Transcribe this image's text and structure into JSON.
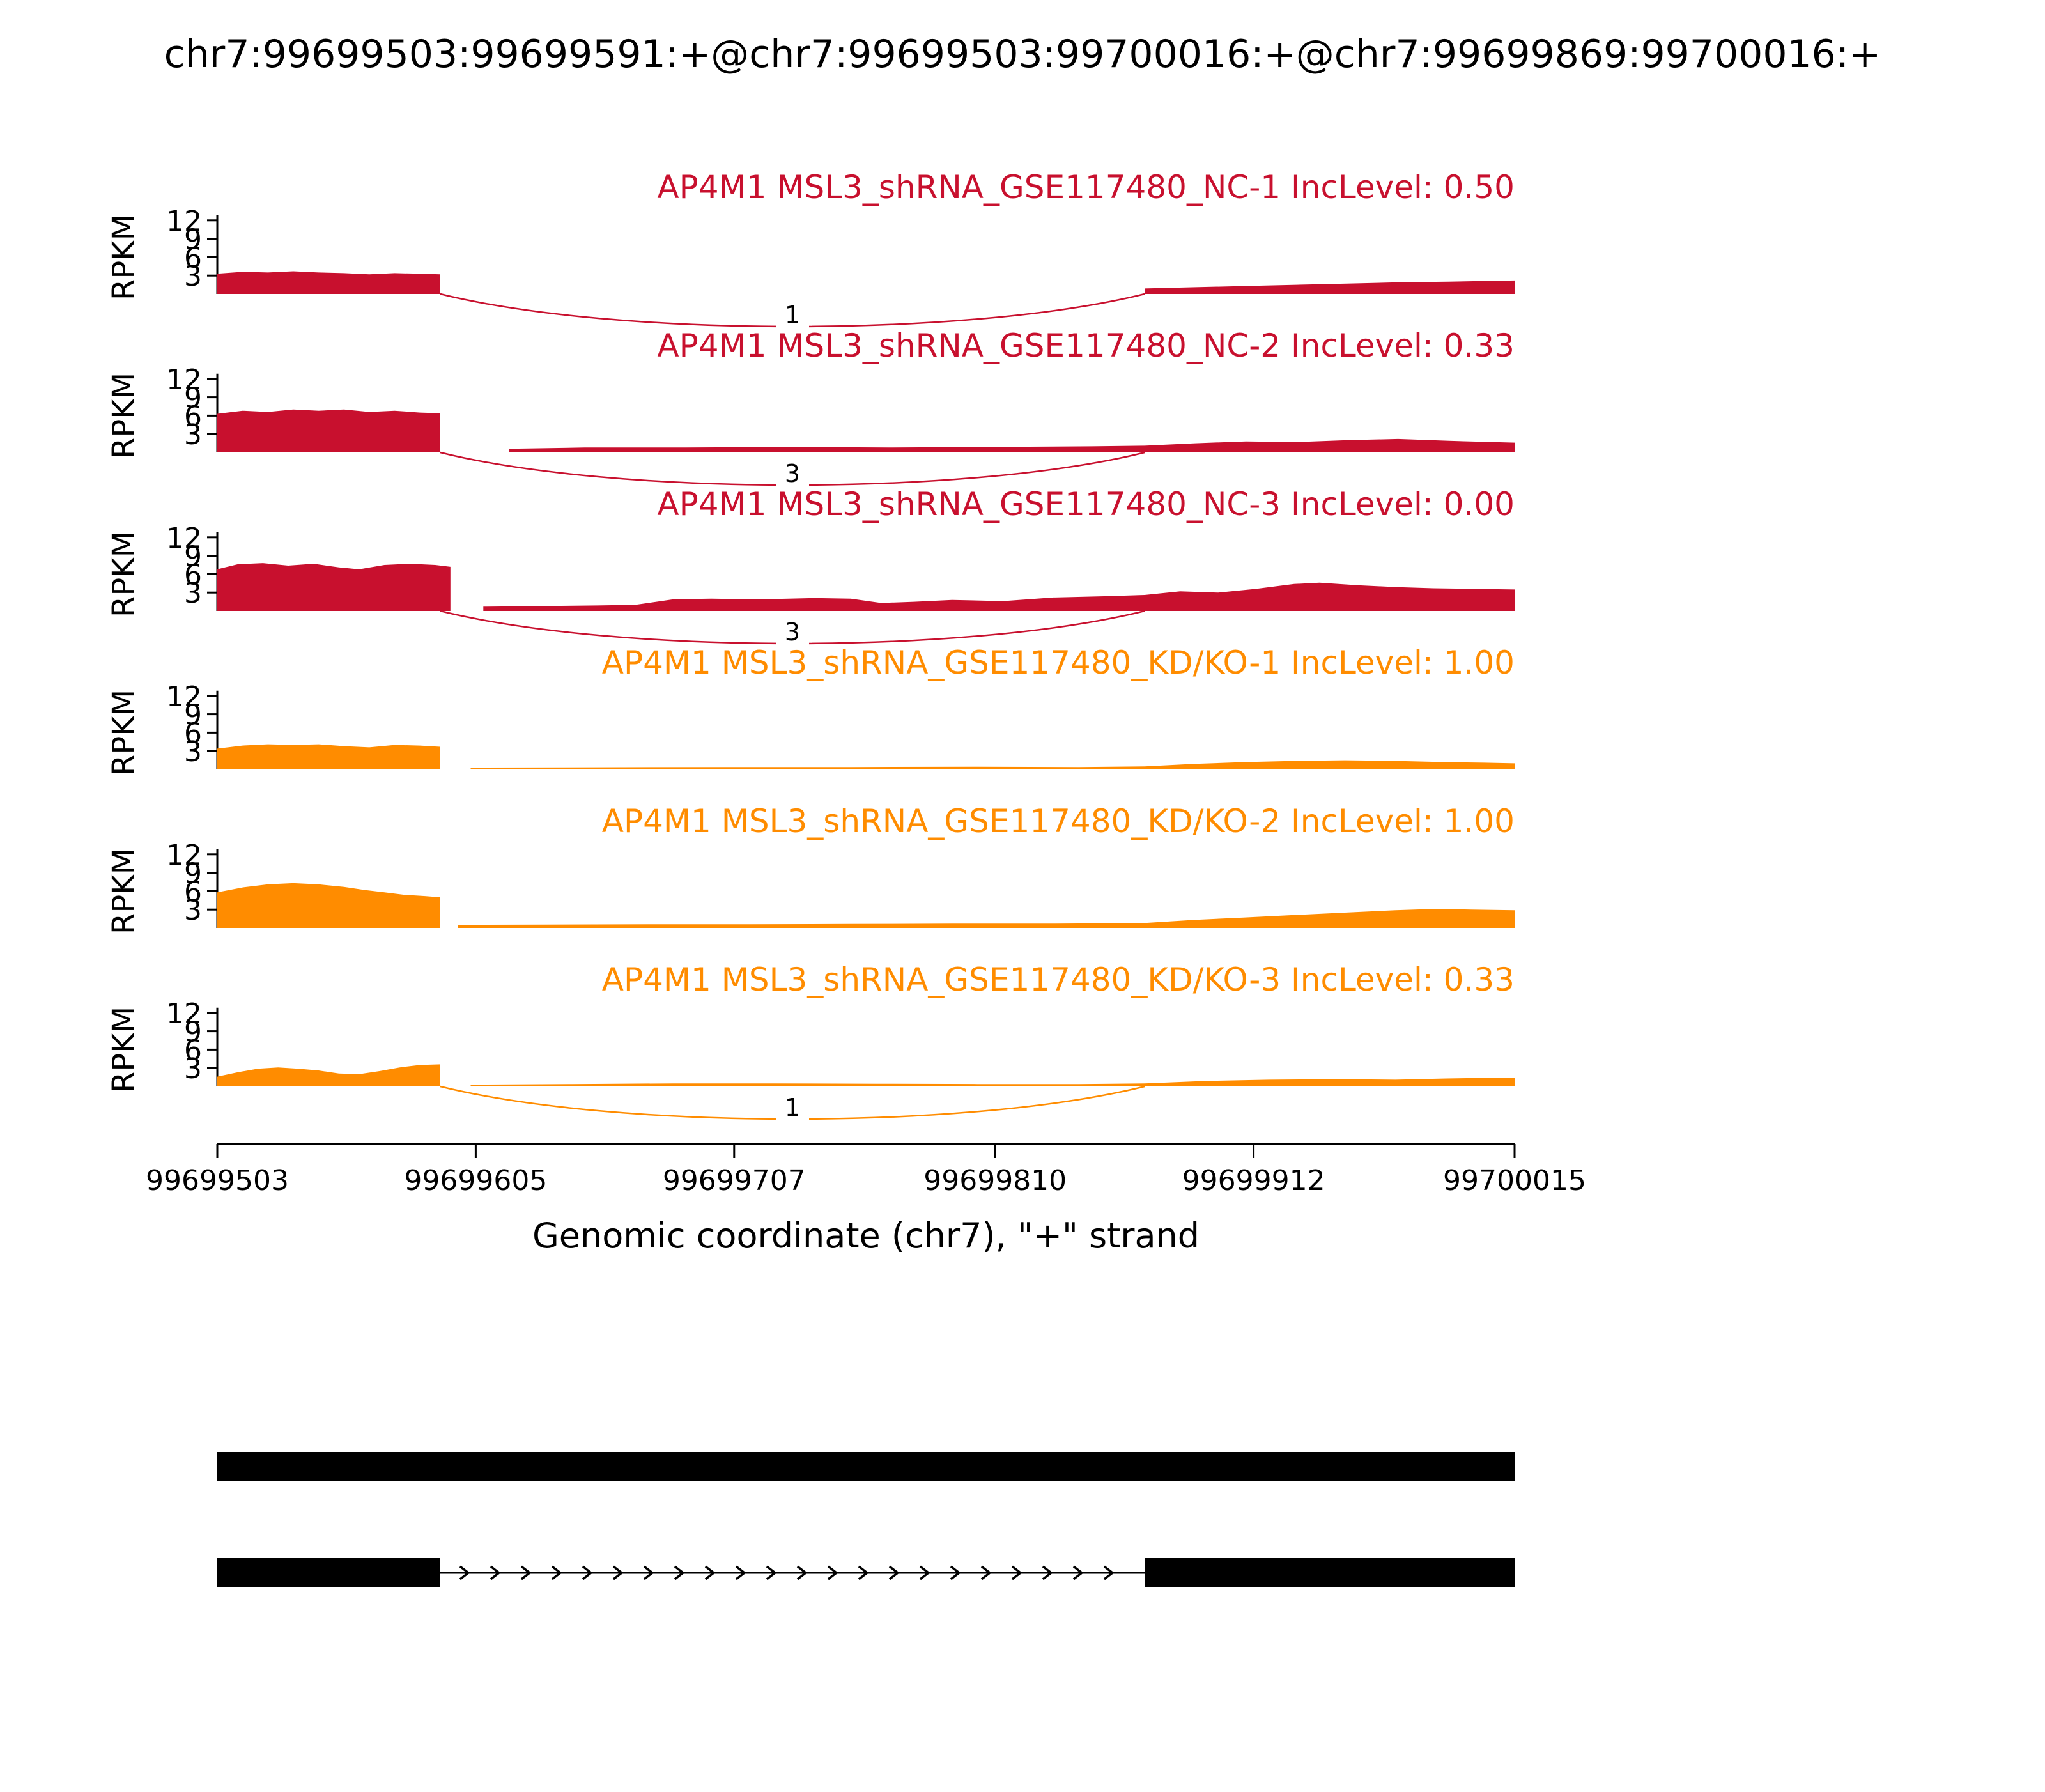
{
  "colors": {
    "nc": "#C8102E",
    "kd_ko": "#FF8C00",
    "gene_model": "#000000",
    "background": "#ffffff"
  },
  "chart_data": {
    "type": "area",
    "subtype": "sashimi-coverage-plot",
    "title": "chr7:99699503:99699591:+@chr7:99699503:99700016:+@chr7:99699869:99700016:+",
    "xlabel": "Genomic coordinate (chr7), \"+\" strand",
    "ylabel": "RPKM",
    "x_domain": [
      99699503,
      99700015
    ],
    "x_ticks": [
      99699503,
      99699605,
      99699707,
      99699810,
      99699912,
      99700015
    ],
    "y_ticks": [
      3,
      6,
      9,
      12
    ],
    "y_max": 12,
    "tracks": [
      {
        "label": "AP4M1 MSL3_shRNA_GSE117480_NC-1 IncLevel: 0.50",
        "color": "#C8102E",
        "segments": [
          [
            [
              99699503,
              3.3
            ],
            [
              99699513,
              3.6
            ],
            [
              99699523,
              3.5
            ],
            [
              99699533,
              3.7
            ],
            [
              99699543,
              3.5
            ],
            [
              99699553,
              3.4
            ],
            [
              99699563,
              3.2
            ],
            [
              99699573,
              3.4
            ],
            [
              99699583,
              3.3
            ],
            [
              99699591,
              3.2
            ]
          ],
          [
            [
              99699869,
              0.9
            ],
            [
              99699889,
              1.1
            ],
            [
              99699909,
              1.3
            ],
            [
              99699929,
              1.5
            ],
            [
              99699949,
              1.7
            ],
            [
              99699969,
              1.9
            ],
            [
              99699989,
              2.0
            ],
            [
              99700002,
              2.1
            ],
            [
              99700015,
              2.2
            ]
          ]
        ],
        "junctions": [
          {
            "from": 99699591,
            "to": 99699869,
            "count": 1
          }
        ]
      },
      {
        "label": "AP4M1 MSL3_shRNA_GSE117480_NC-2 IncLevel: 0.33",
        "color": "#C8102E",
        "segments": [
          [
            [
              99699503,
              6.3
            ],
            [
              99699513,
              6.8
            ],
            [
              99699523,
              6.6
            ],
            [
              99699533,
              7.0
            ],
            [
              99699543,
              6.8
            ],
            [
              99699553,
              7.0
            ],
            [
              99699563,
              6.6
            ],
            [
              99699573,
              6.8
            ],
            [
              99699583,
              6.5
            ],
            [
              99699591,
              6.4
            ]
          ],
          [
            [
              99699618,
              0.6
            ],
            [
              99699648,
              0.8
            ],
            [
              99699688,
              0.8
            ],
            [
              99699728,
              0.9
            ],
            [
              99699768,
              0.8
            ],
            [
              99699808,
              0.9
            ],
            [
              99699848,
              1.0
            ],
            [
              99699869,
              1.1
            ],
            [
              99699889,
              1.5
            ],
            [
              99699909,
              1.8
            ],
            [
              99699929,
              1.7
            ],
            [
              99699949,
              2.0
            ],
            [
              99699969,
              2.2
            ],
            [
              99699989,
              1.9
            ],
            [
              99700015,
              1.6
            ]
          ]
        ],
        "junctions": [
          {
            "from": 99699591,
            "to": 99699869,
            "count": 3
          }
        ]
      },
      {
        "label": "AP4M1 MSL3_shRNA_GSE117480_NC-3 IncLevel: 0.00",
        "color": "#C8102E",
        "segments": [
          [
            [
              99699503,
              6.8
            ],
            [
              99699511,
              7.6
            ],
            [
              99699521,
              7.8
            ],
            [
              99699531,
              7.4
            ],
            [
              99699541,
              7.7
            ],
            [
              99699551,
              7.1
            ],
            [
              99699559,
              6.8
            ],
            [
              99699569,
              7.5
            ],
            [
              99699579,
              7.7
            ],
            [
              99699589,
              7.5
            ],
            [
              99699595,
              7.2
            ]
          ],
          [
            [
              99699608,
              0.7
            ],
            [
              99699633,
              0.8
            ],
            [
              99699653,
              0.9
            ],
            [
              99699668,
              1.0
            ],
            [
              99699683,
              1.9
            ],
            [
              99699698,
              2.0
            ],
            [
              99699718,
              1.9
            ],
            [
              99699738,
              2.1
            ],
            [
              99699753,
              2.0
            ],
            [
              99699765,
              1.3
            ],
            [
              99699778,
              1.5
            ],
            [
              99699793,
              1.8
            ],
            [
              99699813,
              1.6
            ],
            [
              99699833,
              2.2
            ],
            [
              99699853,
              2.4
            ],
            [
              99699869,
              2.6
            ],
            [
              99699883,
              3.2
            ],
            [
              99699898,
              3.0
            ],
            [
              99699913,
              3.6
            ],
            [
              99699928,
              4.4
            ],
            [
              99699938,
              4.6
            ],
            [
              99699953,
              4.2
            ],
            [
              99699968,
              3.9
            ],
            [
              99699983,
              3.7
            ],
            [
              99699998,
              3.6
            ],
            [
              99700015,
              3.5
            ]
          ]
        ],
        "junctions": [
          {
            "from": 99699591,
            "to": 99699869,
            "count": 3
          }
        ]
      },
      {
        "label": "AP4M1 MSL3_shRNA_GSE117480_KD/KO-1 IncLevel: 1.00",
        "color": "#FF8C00",
        "segments": [
          [
            [
              99699503,
              3.4
            ],
            [
              99699513,
              3.9
            ],
            [
              99699523,
              4.1
            ],
            [
              99699533,
              4.0
            ],
            [
              99699543,
              4.1
            ],
            [
              99699553,
              3.8
            ],
            [
              99699563,
              3.6
            ],
            [
              99699573,
              4.0
            ],
            [
              99699583,
              3.9
            ],
            [
              99699591,
              3.7
            ]
          ],
          [
            [
              99699603,
              0.3
            ],
            [
              99699653,
              0.35
            ],
            [
              99699703,
              0.4
            ],
            [
              99699753,
              0.4
            ],
            [
              99699803,
              0.45
            ],
            [
              99699843,
              0.4
            ],
            [
              99699869,
              0.5
            ],
            [
              99699888,
              0.9
            ],
            [
              99699908,
              1.2
            ],
            [
              99699928,
              1.4
            ],
            [
              99699948,
              1.5
            ],
            [
              99699968,
              1.4
            ],
            [
              99699988,
              1.2
            ],
            [
              99700003,
              1.1
            ],
            [
              99700015,
              1.0
            ]
          ]
        ],
        "junctions": []
      },
      {
        "label": "AP4M1 MSL3_shRNA_GSE117480_KD/KO-2 IncLevel: 1.00",
        "color": "#FF8C00",
        "segments": [
          [
            [
              99699503,
              5.8
            ],
            [
              99699513,
              6.6
            ],
            [
              99699523,
              7.1
            ],
            [
              99699533,
              7.3
            ],
            [
              99699543,
              7.1
            ],
            [
              99699553,
              6.7
            ],
            [
              99699561,
              6.2
            ],
            [
              99699569,
              5.8
            ],
            [
              99699577,
              5.4
            ],
            [
              99699585,
              5.2
            ],
            [
              99699591,
              5.0
            ]
          ],
          [
            [
              99699598,
              0.5
            ],
            [
              99699633,
              0.55
            ],
            [
              99699673,
              0.6
            ],
            [
              99699713,
              0.6
            ],
            [
              99699753,
              0.65
            ],
            [
              99699793,
              0.7
            ],
            [
              99699833,
              0.7
            ],
            [
              99699869,
              0.8
            ],
            [
              99699888,
              1.3
            ],
            [
              99699908,
              1.7
            ],
            [
              99699928,
              2.1
            ],
            [
              99699948,
              2.5
            ],
            [
              99699968,
              2.9
            ],
            [
              99699983,
              3.1
            ],
            [
              99699998,
              3.0
            ],
            [
              99700015,
              2.9
            ]
          ]
        ],
        "junctions": []
      },
      {
        "label": "AP4M1 MSL3_shRNA_GSE117480_KD/KO-3 IncLevel: 0.33",
        "color": "#FF8C00",
        "segments": [
          [
            [
              99699503,
              1.6
            ],
            [
              99699511,
              2.3
            ],
            [
              99699519,
              2.9
            ],
            [
              99699527,
              3.1
            ],
            [
              99699535,
              2.9
            ],
            [
              99699543,
              2.6
            ],
            [
              99699551,
              2.1
            ],
            [
              99699559,
              2.0
            ],
            [
              99699567,
              2.5
            ],
            [
              99699575,
              3.1
            ],
            [
              99699583,
              3.5
            ],
            [
              99699591,
              3.6
            ]
          ],
          [
            [
              99699603,
              0.3
            ],
            [
              99699643,
              0.4
            ],
            [
              99699683,
              0.5
            ],
            [
              99699723,
              0.5
            ],
            [
              99699763,
              0.45
            ],
            [
              99699803,
              0.4
            ],
            [
              99699843,
              0.4
            ],
            [
              99699869,
              0.5
            ],
            [
              99699893,
              0.9
            ],
            [
              99699918,
              1.1
            ],
            [
              99699943,
              1.2
            ],
            [
              99699968,
              1.1
            ],
            [
              99699988,
              1.3
            ],
            [
              99700003,
              1.4
            ],
            [
              99700015,
              1.4
            ]
          ]
        ],
        "junctions": [
          {
            "from": 99699591,
            "to": 99699869,
            "count": 1
          }
        ]
      }
    ],
    "gene_model": {
      "color": "#000000",
      "isoforms": [
        {
          "exons": [
            [
              99699503,
              99700015
            ]
          ]
        },
        {
          "exons": [
            [
              99699503,
              99699591
            ],
            [
              99699869,
              99700015
            ]
          ],
          "intron": [
            99699591,
            99699869
          ]
        }
      ]
    }
  }
}
